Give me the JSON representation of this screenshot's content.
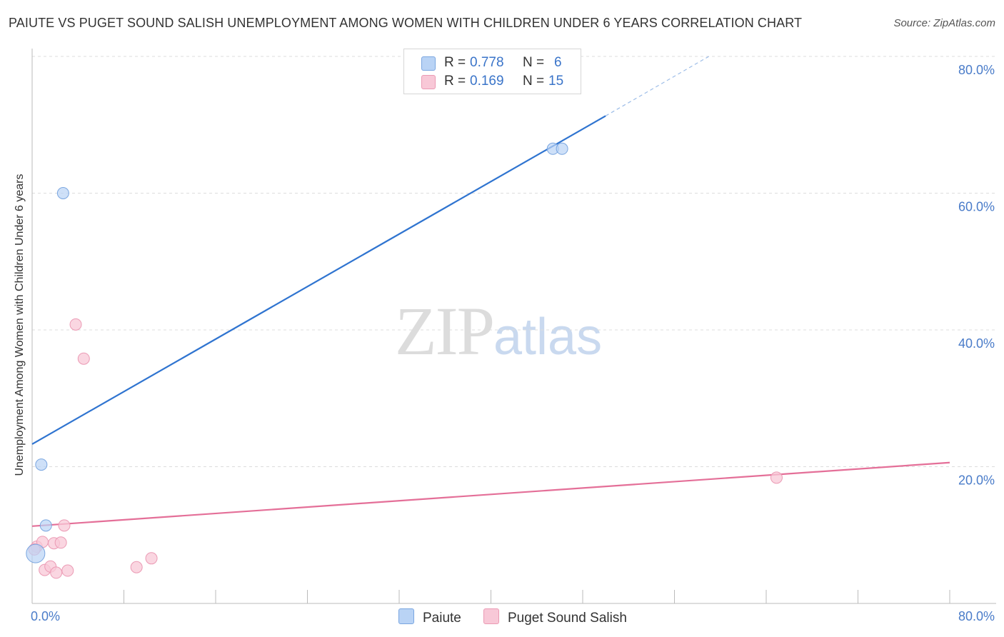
{
  "header": {
    "title": "PAIUTE VS PUGET SOUND SALISH UNEMPLOYMENT AMONG WOMEN WITH CHILDREN UNDER 6 YEARS CORRELATION CHART",
    "source": "Source: ZipAtlas.com"
  },
  "watermark": {
    "zip": "ZIP",
    "atlas": "atlas"
  },
  "legend": {
    "paiute": {
      "r_key": "R = ",
      "r_val": "0.778",
      "n_key": "N = ",
      "n_val": "6"
    },
    "salish": {
      "r_key": "R = ",
      "r_val": "0.169",
      "n_key": "N = ",
      "n_val": "15"
    }
  },
  "colors": {
    "paiute_fill": "#b9d3f5",
    "paiute_stroke": "#7aa6e0",
    "paiute_line": "#2f74d0",
    "salish_fill": "#f8c8d7",
    "salish_stroke": "#eb9ab4",
    "salish_line": "#e46f98",
    "grid": "#dddddd",
    "axis_text": "#4a7cc9"
  },
  "chart_data": {
    "type": "scatter",
    "title": "PAIUTE VS PUGET SOUND SALISH UNEMPLOYMENT AMONG WOMEN WITH CHILDREN UNDER 6 YEARS CORRELATION CHART",
    "xlabel": "",
    "ylabel": "Unemployment Among Women with Children Under 6 years",
    "xlim": [
      0,
      80
    ],
    "ylim": [
      0,
      80
    ],
    "x_tick_labels": [
      "0.0%",
      "80.0%"
    ],
    "y_ticks": [
      20,
      40,
      60,
      80
    ],
    "y_tick_labels": [
      "20.0%",
      "40.0%",
      "60.0%",
      "80.0%"
    ],
    "grid": true,
    "legend_position": "top-center",
    "series": [
      {
        "name": "Paiute",
        "R": 0.778,
        "N": 6,
        "points": [
          {
            "x": 0.3,
            "y": 7.3,
            "size": "large"
          },
          {
            "x": 0.8,
            "y": 20.3
          },
          {
            "x": 1.2,
            "y": 11.4
          },
          {
            "x": 2.7,
            "y": 60.0
          },
          {
            "x": 45.4,
            "y": 66.5
          },
          {
            "x": 46.2,
            "y": 66.5
          }
        ],
        "trend": {
          "x0": 0,
          "y0": 23.3,
          "x1": 50.0,
          "y1": 71.3,
          "dashed_to_x": 59.0,
          "dashed_to_y": 80.0
        }
      },
      {
        "name": "Puget Sound Salish",
        "R": 0.169,
        "N": 15,
        "points": [
          {
            "x": 0.4,
            "y": 8.3
          },
          {
            "x": 0.9,
            "y": 9.0
          },
          {
            "x": 1.1,
            "y": 4.9
          },
          {
            "x": 1.6,
            "y": 5.4
          },
          {
            "x": 1.9,
            "y": 8.8
          },
          {
            "x": 2.1,
            "y": 4.5
          },
          {
            "x": 2.5,
            "y": 8.9
          },
          {
            "x": 2.8,
            "y": 11.4
          },
          {
            "x": 3.1,
            "y": 4.8
          },
          {
            "x": 3.8,
            "y": 40.8
          },
          {
            "x": 4.5,
            "y": 35.8
          },
          {
            "x": 9.1,
            "y": 5.3
          },
          {
            "x": 10.4,
            "y": 6.6
          },
          {
            "x": 64.9,
            "y": 18.4
          },
          {
            "x": 0.2,
            "y": 7.9
          }
        ],
        "trend": {
          "x0": 0,
          "y0": 11.3,
          "x1": 80,
          "y1": 20.6
        }
      }
    ]
  },
  "bottom_legend": {
    "paiute_label": "Paiute",
    "salish_label": "Puget Sound Salish"
  }
}
